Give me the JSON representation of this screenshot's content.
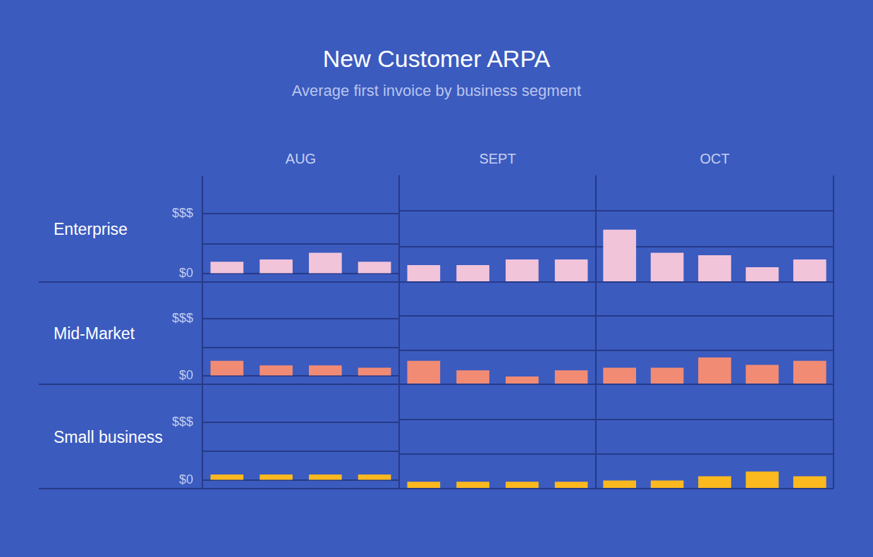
{
  "title": "New Customer ARPA",
  "subtitle": "Average first invoice by business segment",
  "columns": [
    "AUG",
    "SEPT",
    "OCT"
  ],
  "chart_data": [
    {
      "type": "bar",
      "title": "Enterprise",
      "color": "#f2c4da",
      "ylim": [
        0,
        3
      ],
      "yticks": [
        {
          "value": 0,
          "label": "$0"
        },
        {
          "value": 1,
          "label": null
        },
        {
          "value": 2,
          "label": "$$$"
        }
      ],
      "grid": true,
      "tick_labels": "y",
      "panels": [
        {
          "categories": [
            null,
            null,
            null,
            null
          ],
          "values": [
            0.39,
            0.47,
            0.69,
            0.39
          ]
        },
        {
          "categories": [
            null,
            null,
            null,
            null
          ],
          "values": [
            0.47,
            0.47,
            0.63,
            0.63
          ]
        },
        {
          "categories": [
            null,
            null,
            null,
            null,
            null
          ],
          "values": [
            1.47,
            0.82,
            0.75,
            0.41,
            0.63
          ]
        }
      ]
    },
    {
      "type": "bar",
      "title": "Mid-Market",
      "color": "#f28b74",
      "ylim": [
        0,
        3
      ],
      "yticks": [
        {
          "value": 0,
          "label": "$0"
        },
        {
          "value": 1,
          "label": null
        },
        {
          "value": 2,
          "label": "$$$"
        }
      ],
      "grid": true,
      "tick_labels": "y",
      "panels": [
        {
          "categories": [
            null,
            null,
            null,
            null
          ],
          "values": [
            0.52,
            0.36,
            0.36,
            0.28
          ]
        },
        {
          "categories": [
            null,
            null,
            null,
            null
          ],
          "values": [
            0.68,
            0.4,
            0.22,
            0.4
          ]
        },
        {
          "categories": [
            null,
            null,
            null,
            null,
            null
          ],
          "values": [
            0.48,
            0.48,
            0.78,
            0.56,
            0.68
          ]
        }
      ]
    },
    {
      "type": "bar",
      "title": "Small business",
      "color": "#fbb91f",
      "ylim": [
        0,
        3
      ],
      "yticks": [
        {
          "value": 0,
          "label": "$0"
        },
        {
          "value": 1,
          "label": null
        },
        {
          "value": 2,
          "label": "$$$"
        }
      ],
      "grid": true,
      "tick_labels": "y",
      "panels": [
        {
          "categories": [
            null,
            null,
            null,
            null
          ],
          "values": [
            0.19,
            0.19,
            0.19,
            0.19
          ]
        },
        {
          "categories": [
            null,
            null,
            null,
            null
          ],
          "values": [
            0.19,
            0.19,
            0.19,
            0.19
          ]
        },
        {
          "categories": [
            null,
            null,
            null,
            null,
            null
          ],
          "values": [
            0.23,
            0.23,
            0.35,
            0.49,
            0.35
          ]
        }
      ]
    }
  ]
}
